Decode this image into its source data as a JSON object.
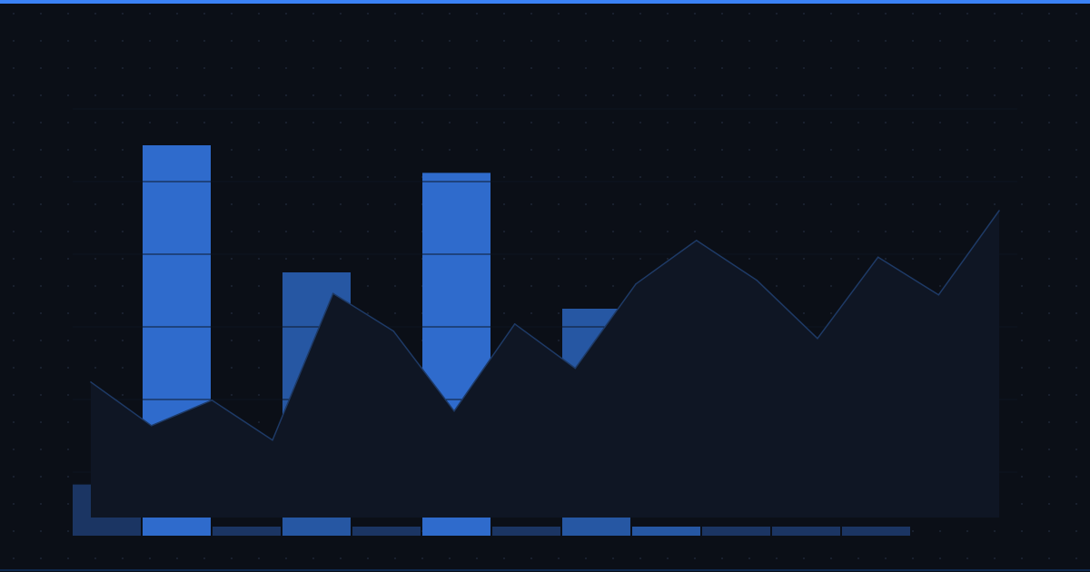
{
  "colors": {
    "background": "#0b0f17",
    "accent": "#3b82f6",
    "bar_bright": "#2f6bcc",
    "bar_mid": "#2657a3",
    "bar_dark": "#1b3563",
    "area_fill": "#0f1624",
    "area_line": "#1e3a66",
    "gridline": "#1a2231"
  },
  "chart_data": [
    {
      "type": "bar",
      "ylim": [
        0,
        6
      ],
      "grid": true,
      "values": [
        0.83,
        5.5,
        0.25,
        3.75,
        0.25,
        5.12,
        0.25,
        3.25,
        0.25,
        0.25,
        0.25,
        0.25
      ],
      "color_levels": [
        "dark",
        "bright",
        "dark",
        "mid",
        "dark",
        "bright",
        "dark",
        "mid",
        "mid",
        "dark",
        "dark",
        "dark"
      ]
    },
    {
      "type": "area",
      "ylim": [
        0,
        6
      ],
      "values": [
        2.24,
        1.64,
        1.99,
        1.44,
        3.46,
        2.94,
        1.84,
        3.04,
        2.43,
        3.59,
        4.19,
        3.64,
        2.84,
        3.96,
        3.44,
        4.6
      ]
    }
  ]
}
